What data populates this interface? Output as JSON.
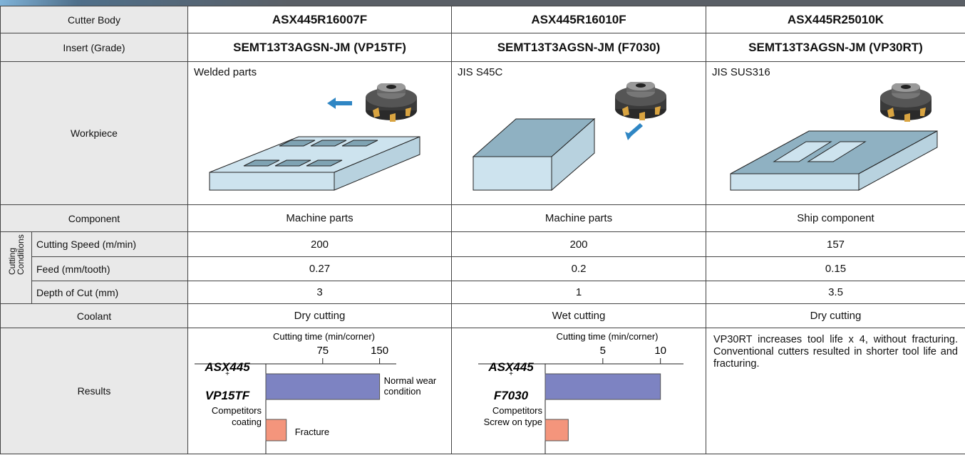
{
  "table": {
    "header": {
      "label": "Cutter Body",
      "cells": [
        "ASX445R16007F",
        "ASX445R16010F",
        "ASX445R25010K"
      ]
    },
    "insert": {
      "label": "Insert (Grade)",
      "cells": [
        "SEMT13T3AGSN-JM (VP15TF)",
        "SEMT13T3AGSN-JM (F7030)",
        "SEMT13T3AGSN-JM (VP30RT)"
      ]
    },
    "workpiece": {
      "label": "Workpiece",
      "cells": [
        "Welded parts",
        "JIS S45C",
        "JIS SUS316"
      ]
    },
    "component": {
      "label": "Component",
      "cells": [
        "Machine parts",
        "Machine parts",
        "Ship component"
      ]
    },
    "cutting_conditions": {
      "label": [
        "Cutting",
        "Conditions"
      ],
      "rows": [
        {
          "label": "Cutting Speed (m/min)",
          "cells": [
            "200",
            "200",
            "157"
          ]
        },
        {
          "label": "Feed (mm/tooth)",
          "cells": [
            "0.27",
            "0.2",
            "0.15"
          ]
        },
        {
          "label": "Depth of Cut (mm)",
          "cells": [
            "3",
            "1",
            "3.5"
          ]
        }
      ]
    },
    "coolant": {
      "label": "Coolant",
      "cells": [
        "Dry cutting",
        "Wet cutting",
        "Dry cutting"
      ]
    },
    "results": {
      "label": "Results",
      "charts": [
        {
          "axis_label": "Cutting time (min/corner)",
          "xlim": [
            0,
            172
          ],
          "xticks": [
            75,
            150
          ],
          "bars": [
            {
              "name": [
                "ASX445",
                "+",
                "VP15TF"
              ],
              "value": 150,
              "annotation": [
                "Normal wear",
                "condition"
              ],
              "color": "#7d83c2"
            },
            {
              "name": [
                "Competitors",
                "coating"
              ],
              "value": 27,
              "annotation": [
                "Fracture"
              ],
              "color": "#f4957c"
            }
          ]
        },
        {
          "axis_label": "Cutting time (min/corner)",
          "xlim": [
            0,
            12
          ],
          "xticks": [
            5,
            10
          ],
          "bars": [
            {
              "name": [
                "ASX445",
                "+",
                "F7030"
              ],
              "value": 10,
              "color": "#7d83c2"
            },
            {
              "name": [
                "Competitors",
                "Screw on type"
              ],
              "value": 2,
              "color": "#f4957c"
            }
          ]
        }
      ],
      "text": "VP30RT increases tool life x 4, without fracturing. Conventional cutters resulted in shorter tool life and fracturing."
    }
  }
}
